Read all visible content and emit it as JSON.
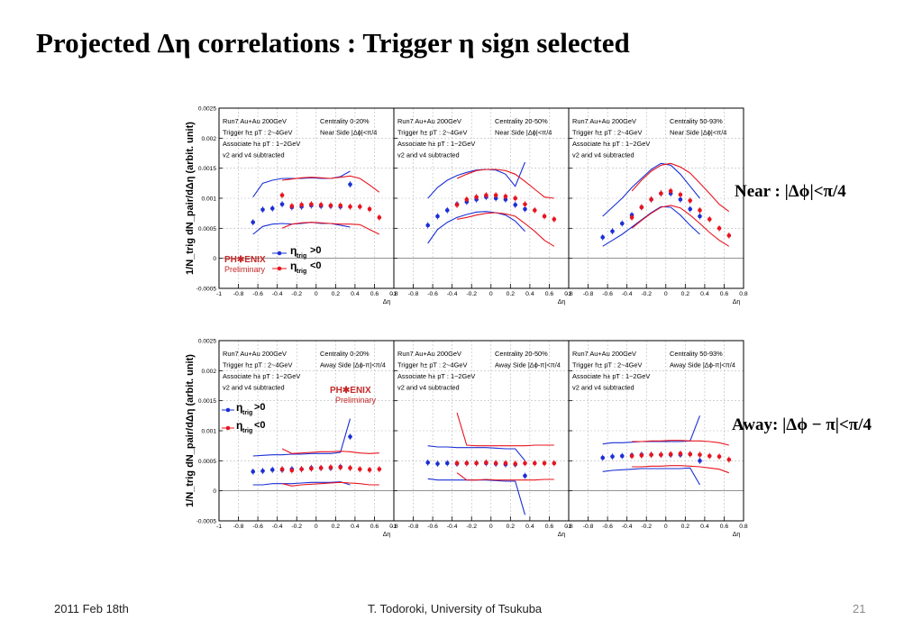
{
  "slide": {
    "title": "Projected Δη correlations : Trigger η sign selected",
    "near_label": "Near : |Δϕ|<π/4",
    "away_label": "Away: |Δϕ − π|<π/4"
  },
  "footer": {
    "date": "2011 Feb 18th",
    "author": "T. Todoroki, University of Tsukuba",
    "page": "21"
  },
  "legend": {
    "logo": "PH✱ENIX",
    "preliminary": "Preliminary",
    "pos_label": ">0",
    "neg_label": "<0",
    "eta_symbol": "η",
    "eta_sub": "trig"
  },
  "colors": {
    "positive": "#1a2fd6",
    "negative": "#e8141e",
    "frame": "#000000",
    "grid": "#b8b8b8",
    "logo": "#c62828"
  },
  "axes": {
    "ylabel": "1/N_trig dN_pair/dΔη (arbit. unit)",
    "xlabel": "Δη",
    "xlim": [
      -1,
      0.8
    ],
    "xticks": [
      "-1",
      "-0.8",
      "-0.6",
      "-0.4",
      "-0.2",
      "0",
      "0.2",
      "0.4",
      "0.6",
      "0.8"
    ],
    "ylim": [
      -0.0005,
      0.0025
    ],
    "yticks": [
      "-0.0005",
      "0",
      "0.0005",
      "0.001",
      "0.0015",
      "0.002"
    ],
    "top_tick": "0.0025"
  },
  "chart_data": [
    {
      "type": "scatter",
      "id": "near-0-20",
      "info_left": [
        "Run7 Au+Au 200GeV",
        "Trigger h± pT : 2~4GeV",
        "Associate h± pT : 1~2GeV",
        "v2 and v4 subtracted"
      ],
      "info_right": [
        "Centrality 0-20%",
        "Near Side |Δϕ|<π/4"
      ],
      "series": [
        {
          "name": "ηtrig>0",
          "x": [
            -0.65,
            -0.55,
            -0.45,
            -0.35,
            -0.25,
            -0.15,
            -0.05,
            0.05,
            0.15,
            0.25,
            0.35
          ],
          "y": [
            0.0006,
            0.00081,
            0.00083,
            0.0009,
            0.00085,
            0.00086,
            0.00088,
            0.00087,
            0.00087,
            0.00086,
            0.00123
          ],
          "band_upper": [
            0.00102,
            0.00125,
            0.0013,
            0.00133,
            0.00133,
            0.00133,
            0.00134,
            0.00133,
            0.00133,
            0.00136,
            0.00145
          ],
          "band_lower": [
            0.0004,
            0.00053,
            0.00057,
            0.00058,
            0.00057,
            0.00058,
            0.0006,
            0.00058,
            0.00058,
            0.00055,
            0.00052
          ]
        },
        {
          "name": "ηtrig<0",
          "x": [
            -0.35,
            -0.25,
            -0.15,
            -0.05,
            0.05,
            0.15,
            0.25,
            0.35,
            0.45,
            0.55,
            0.65
          ],
          "y": [
            0.00105,
            0.00087,
            0.00089,
            0.0009,
            0.00089,
            0.00088,
            0.00088,
            0.00086,
            0.00086,
            0.00082,
            0.00068
          ],
          "band_upper": [
            0.0013,
            0.00132,
            0.00134,
            0.00135,
            0.00134,
            0.00133,
            0.00135,
            0.00137,
            0.00133,
            0.00122,
            0.0011
          ],
          "band_lower": [
            0.0005,
            0.00057,
            0.00059,
            0.0006,
            0.00059,
            0.00058,
            0.00057,
            0.00057,
            0.00056,
            0.00048,
            0.0004
          ]
        }
      ]
    },
    {
      "type": "scatter",
      "id": "near-20-50",
      "info_left": [
        "Run7 Au+Au 200GeV",
        "Trigger h± pT : 2~4GeV",
        "Associate h± pT : 1~2GeV",
        "v2 and v4 subtracted"
      ],
      "info_right": [
        "Centrality 20-50%",
        "Near Side |Δϕ|<π/4"
      ],
      "series": [
        {
          "name": "ηtrig>0",
          "x": [
            -0.65,
            -0.55,
            -0.45,
            -0.35,
            -0.25,
            -0.15,
            -0.05,
            0.05,
            0.15,
            0.25,
            0.35
          ],
          "y": [
            0.00055,
            0.0007,
            0.0008,
            0.0009,
            0.00094,
            0.00098,
            0.00102,
            0.001,
            0.00098,
            0.00089,
            0.00082
          ],
          "band_upper": [
            0.001,
            0.00118,
            0.0013,
            0.00138,
            0.00143,
            0.00147,
            0.00148,
            0.00147,
            0.0014,
            0.0012,
            0.0016
          ],
          "band_lower": [
            0.00025,
            0.00048,
            0.0006,
            0.00068,
            0.00073,
            0.00077,
            0.00078,
            0.00076,
            0.00072,
            0.00062,
            0.00045
          ]
        },
        {
          "name": "ηtrig<0",
          "x": [
            -0.35,
            -0.25,
            -0.15,
            -0.05,
            0.05,
            0.15,
            0.25,
            0.35,
            0.45,
            0.55,
            0.65
          ],
          "y": [
            0.00089,
            0.00098,
            0.00102,
            0.00105,
            0.00105,
            0.00103,
            0.001,
            0.0009,
            0.0008,
            0.0007,
            0.00065
          ],
          "band_upper": [
            0.00133,
            0.0014,
            0.00146,
            0.00148,
            0.00148,
            0.00146,
            0.0014,
            0.00128,
            0.00115,
            0.00102,
            0.001
          ],
          "band_lower": [
            0.00065,
            0.00068,
            0.00072,
            0.00075,
            0.00076,
            0.00074,
            0.0007,
            0.00058,
            0.00045,
            0.0003,
            0.0002
          ]
        }
      ]
    },
    {
      "type": "scatter",
      "id": "near-50-93",
      "info_left": [
        "Run7 Au+Au 200GeV",
        "Trigger h± pT : 2~4GeV",
        "Associate h± pT : 1~2GeV",
        "v2 and v4 subtracted"
      ],
      "info_right": [
        "Centrality 50-93%",
        "Near Side |Δϕ|<π/4"
      ],
      "series": [
        {
          "name": "ηtrig>0",
          "x": [
            -0.65,
            -0.55,
            -0.45,
            -0.35,
            -0.25,
            -0.15,
            -0.05,
            0.05,
            0.15,
            0.25,
            0.35
          ],
          "y": [
            0.00035,
            0.00045,
            0.00058,
            0.00072,
            0.00085,
            0.00098,
            0.00108,
            0.00108,
            0.00098,
            0.00082,
            0.0007
          ],
          "band_upper": [
            0.0007,
            0.00085,
            0.001,
            0.00118,
            0.00133,
            0.00148,
            0.00158,
            0.00155,
            0.0014,
            0.0012,
            0.001
          ],
          "band_lower": [
            0.0002,
            0.0003,
            0.0004,
            0.00052,
            0.00064,
            0.00076,
            0.00086,
            0.00085,
            0.00072,
            0.00055,
            0.0004
          ]
        },
        {
          "name": "ηtrig<0",
          "x": [
            -0.35,
            -0.25,
            -0.15,
            -0.05,
            0.05,
            0.15,
            0.25,
            0.35,
            0.45,
            0.55,
            0.65
          ],
          "y": [
            0.00068,
            0.00085,
            0.00098,
            0.00108,
            0.00112,
            0.00106,
            0.00096,
            0.0008,
            0.00065,
            0.0005,
            0.00038
          ],
          "band_upper": [
            0.00112,
            0.0013,
            0.00145,
            0.00155,
            0.00158,
            0.00152,
            0.00142,
            0.00125,
            0.00108,
            0.0009,
            0.00078
          ],
          "band_lower": [
            0.0005,
            0.00063,
            0.00075,
            0.00085,
            0.00088,
            0.00084,
            0.00072,
            0.00058,
            0.00043,
            0.0003,
            0.0002
          ]
        }
      ]
    },
    {
      "type": "scatter",
      "id": "away-0-20",
      "info_left": [
        "Run7 Au+Au 200GeV",
        "Trigger h± pT : 2~4GeV",
        "Associate h± pT : 1~2GeV",
        "v2 and v4 subtracted"
      ],
      "info_right": [
        "Centrality 0-20%",
        "Away Side |Δϕ-π|<π/4"
      ],
      "series": [
        {
          "name": "ηtrig>0",
          "x": [
            -0.65,
            -0.55,
            -0.45,
            -0.35,
            -0.25,
            -0.15,
            -0.05,
            0.05,
            0.15,
            0.25,
            0.35
          ],
          "y": [
            0.00032,
            0.00033,
            0.00035,
            0.00035,
            0.00036,
            0.00036,
            0.00038,
            0.00038,
            0.00038,
            0.0004,
            0.0009
          ],
          "band_upper": [
            0.00058,
            0.00059,
            0.0006,
            0.0006,
            0.00061,
            0.00061,
            0.00062,
            0.00062,
            0.00062,
            0.00064,
            0.0012
          ],
          "band_lower": [
            0.0001,
            0.0001,
            0.00012,
            0.00012,
            0.00012,
            0.00013,
            0.00014,
            0.00014,
            0.00014,
            0.00015,
            0.0001
          ]
        },
        {
          "name": "ηtrig<0",
          "x": [
            -0.35,
            -0.25,
            -0.15,
            -0.05,
            0.05,
            0.15,
            0.25,
            0.35,
            0.45,
            0.55,
            0.65
          ],
          "y": [
            0.00036,
            0.00034,
            0.00036,
            0.00037,
            0.00038,
            0.00039,
            0.00039,
            0.00038,
            0.00036,
            0.00035,
            0.00036
          ],
          "band_upper": [
            0.0007,
            0.00062,
            0.00063,
            0.00064,
            0.00065,
            0.00065,
            0.00066,
            0.00065,
            0.00063,
            0.00062,
            0.00063
          ],
          "band_lower": [
            0.00012,
            8e-05,
            0.0001,
            0.00011,
            0.00012,
            0.00013,
            0.00014,
            0.00013,
            0.00012,
            0.0001,
            0.0001
          ]
        }
      ]
    },
    {
      "type": "scatter",
      "id": "away-20-50",
      "info_left": [
        "Run7 Au+Au 200GeV",
        "Trigger h± pT : 2~4GeV",
        "Associate h± pT : 1~2GeV",
        "v2 and v4 subtracted"
      ],
      "info_right": [
        "Centrality 20-50%",
        "Away Side |Δϕ-π|<π/4"
      ],
      "series": [
        {
          "name": "ηtrig>0",
          "x": [
            -0.65,
            -0.55,
            -0.45,
            -0.35,
            -0.25,
            -0.15,
            -0.05,
            0.05,
            0.15,
            0.25,
            0.35
          ],
          "y": [
            0.00047,
            0.00045,
            0.00046,
            0.00045,
            0.00046,
            0.00046,
            0.00046,
            0.00045,
            0.00044,
            0.00044,
            0.00025
          ],
          "band_upper": [
            0.00075,
            0.00073,
            0.00073,
            0.00072,
            0.00072,
            0.00072,
            0.00072,
            0.00071,
            0.0007,
            0.0007,
            0.0005
          ],
          "band_lower": [
            0.0002,
            0.00018,
            0.00018,
            0.00018,
            0.00018,
            0.00018,
            0.00018,
            0.00017,
            0.00016,
            0.00016,
            -0.0004
          ]
        },
        {
          "name": "ηtrig<0",
          "x": [
            -0.35,
            -0.25,
            -0.15,
            -0.05,
            0.05,
            0.15,
            0.25,
            0.35,
            0.45,
            0.55,
            0.65
          ],
          "y": [
            0.00046,
            0.00046,
            0.00046,
            0.00047,
            0.00046,
            0.00046,
            0.00045,
            0.00046,
            0.00046,
            0.00046,
            0.00046
          ],
          "band_upper": [
            0.0013,
            0.00076,
            0.00075,
            0.00075,
            0.00075,
            0.00075,
            0.00075,
            0.00075,
            0.00076,
            0.00076,
            0.00076
          ],
          "band_lower": [
            0.0003,
            0.00018,
            0.00018,
            0.00019,
            0.00018,
            0.00018,
            0.00018,
            0.00018,
            0.00018,
            0.00019,
            0.00019
          ]
        }
      ]
    },
    {
      "type": "scatter",
      "id": "away-50-93",
      "info_left": [
        "Run7 Au+Au 200GeV",
        "Trigger h± pT : 2~4GeV",
        "Associate h± pT : 1~2GeV",
        "v2 and v4 subtracted"
      ],
      "info_right": [
        "Centrality 50-93%",
        "Away Side |Δϕ-π|<π/4"
      ],
      "series": [
        {
          "name": "ηtrig>0",
          "x": [
            -0.65,
            -0.55,
            -0.45,
            -0.35,
            -0.25,
            -0.15,
            -0.05,
            0.05,
            0.15,
            0.25,
            0.35
          ],
          "y": [
            0.00055,
            0.00057,
            0.00058,
            0.00059,
            0.0006,
            0.0006,
            0.0006,
            0.0006,
            0.0006,
            0.00061,
            0.0005
          ],
          "band_upper": [
            0.00078,
            0.0008,
            0.0008,
            0.00081,
            0.00082,
            0.00082,
            0.00082,
            0.00082,
            0.00082,
            0.00083,
            0.00125
          ],
          "band_lower": [
            0.00032,
            0.00034,
            0.00035,
            0.00036,
            0.00037,
            0.00037,
            0.00037,
            0.00037,
            0.00037,
            0.00038,
            0.0001
          ]
        },
        {
          "name": "ηtrig<0",
          "x": [
            -0.35,
            -0.25,
            -0.15,
            -0.05,
            0.05,
            0.15,
            0.25,
            0.35,
            0.45,
            0.55,
            0.65
          ],
          "y": [
            0.00058,
            0.00059,
            0.0006,
            0.0006,
            0.00061,
            0.00062,
            0.00061,
            0.0006,
            0.00058,
            0.00057,
            0.00052
          ],
          "band_upper": [
            0.00082,
            0.00082,
            0.00083,
            0.00083,
            0.00084,
            0.00084,
            0.00083,
            0.00083,
            0.00082,
            0.0008,
            0.00076
          ],
          "band_lower": [
            0.0004,
            0.0004,
            0.00041,
            0.00041,
            0.00042,
            0.00042,
            0.00041,
            0.0004,
            0.00038,
            0.00036,
            0.0003
          ]
        }
      ]
    }
  ]
}
